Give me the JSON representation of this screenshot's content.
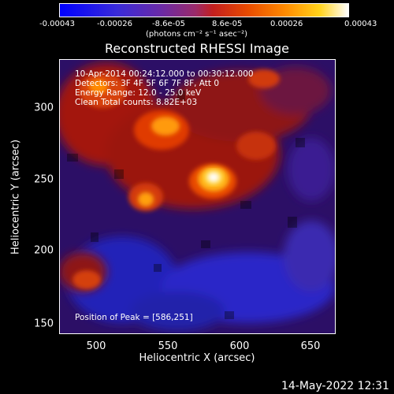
{
  "colorbar": {
    "ticks": [
      "-0.00043",
      "-0.00026",
      "-8.6e-05",
      "8.6e-05",
      "0.00026",
      "0.00043"
    ],
    "units": "(photons cm⁻² s⁻¹ asec⁻²)",
    "colors": [
      "#0000ff",
      "#6a2aa6",
      "#c31f1f",
      "#ff8a00",
      "#ffd21a",
      "#ffffff"
    ]
  },
  "title": "Reconstructed RHESSI Image",
  "info": {
    "time_range": "10-Apr-2014 00:24:12.000 to 00:30:12.000",
    "detectors": "Detectors: 3F 4F 5F 6F 7F 8F, Att 0",
    "energy": "Energy Range: 12.0 - 25.0 keV",
    "clean": "Clean     Total counts: 8.82E+03",
    "peak": "Position of Peak = [586,251]"
  },
  "axes": {
    "xlabel": "Heliocentric X (arcsec)",
    "ylabel": "Heliocentric Y (arcsec)",
    "xticks": [
      "500",
      "550",
      "600",
      "650"
    ],
    "yticks": [
      "300",
      "250",
      "200",
      "150"
    ],
    "xlim": [
      475,
      667
    ],
    "ylim": [
      140,
      333
    ]
  },
  "timestamp": "14-May-2022 12:31"
}
